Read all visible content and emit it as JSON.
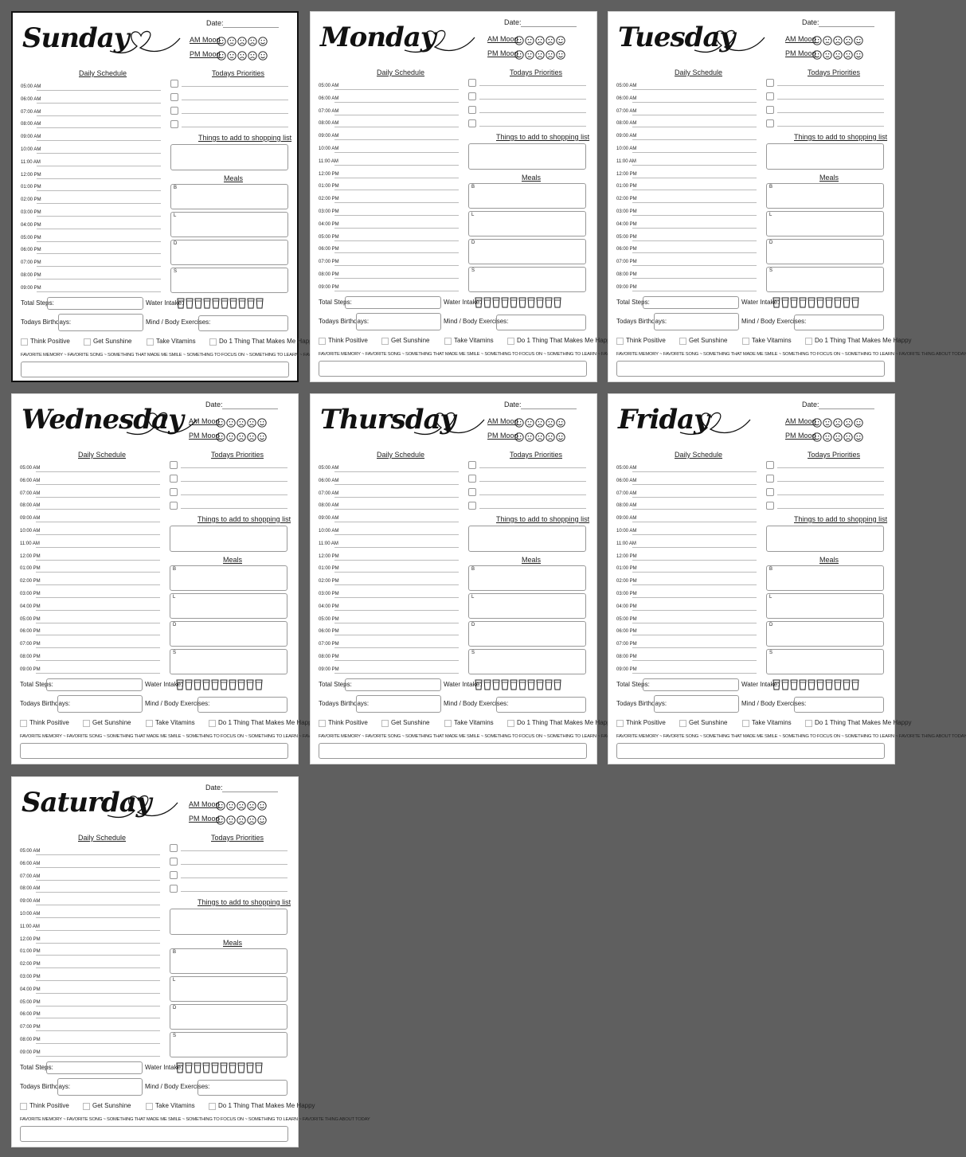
{
  "pages": [
    {
      "day": "Sunday",
      "selected": true
    },
    {
      "day": "Monday",
      "selected": false
    },
    {
      "day": "Tuesday",
      "selected": false
    },
    {
      "day": "Wednesday",
      "selected": false
    },
    {
      "day": "Thursday",
      "selected": false
    },
    {
      "day": "Friday",
      "selected": false
    },
    {
      "day": "Saturday",
      "selected": false
    }
  ],
  "labels": {
    "date": "Date:",
    "am_mood": "AM Mood",
    "pm_mood": "PM Mood",
    "daily_schedule": "Daily Schedule",
    "todays_priorities": "Todays Priorities",
    "shopping": "Things to add to shopping list",
    "meals": "Meals",
    "total_steps": "Total Steps:",
    "water_intake": "Water Intake:",
    "todays_birthdays": "Todays Birthdays:",
    "mind_body": "Mind / Body Exercises:",
    "footer": "FAVORITE MEMORY ~ FAVORITE SONG ~ SOMETHING THAT MADE ME SMILE ~ SOMETHING TO FOCUS ON ~ SOMETHING TO LEARN ~ FAVORITE THING ABOUT TODAY"
  },
  "times": [
    "05:00 AM",
    "06:00 AM",
    "07:00 AM",
    "08:00 AM",
    "09:00 AM",
    "10:00 AM",
    "11:00 AM",
    "12:00 PM",
    "01:00 PM",
    "02:00 PM",
    "03:00 PM",
    "04:00 PM",
    "05:00 PM",
    "06:00 PM",
    "07:00 PM",
    "08:00 PM",
    "09:00 PM"
  ],
  "meals": [
    "B",
    "L",
    "D",
    "S"
  ],
  "habits": [
    "Think Positive",
    "Get Sunshine",
    "Take Vitamins",
    "Do 1 Thing That Makes Me Happy"
  ],
  "mood_faces": [
    "happy",
    "neutral",
    "sad",
    "sad",
    "happy"
  ],
  "priorities_count": 4,
  "water_cups": 10
}
